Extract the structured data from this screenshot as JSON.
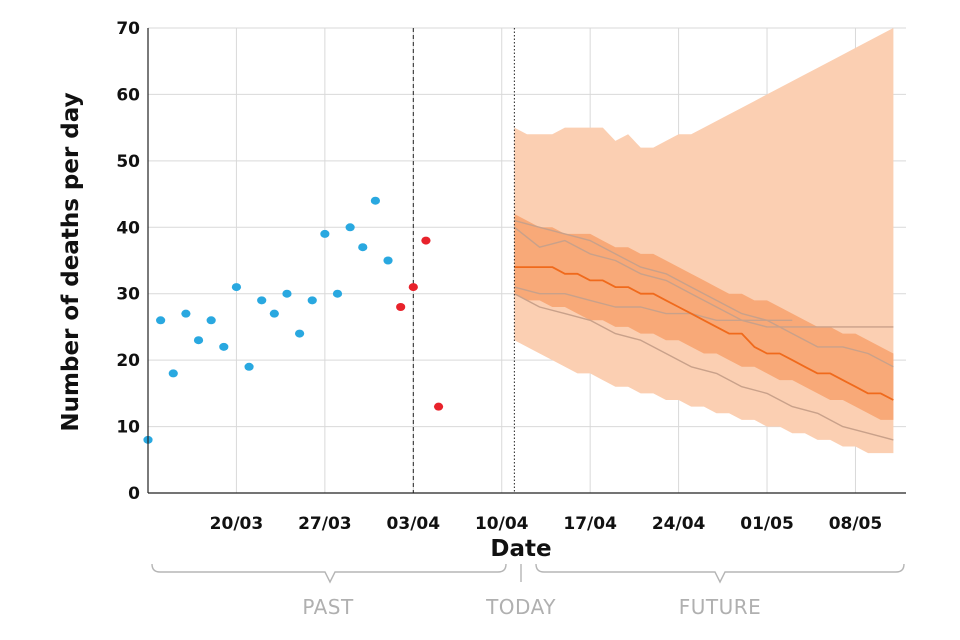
{
  "chart_data": {
    "type": "scatter",
    "title": "",
    "xlabel": "Date",
    "ylabel": "Number of deaths per day",
    "ylim": [
      0,
      70
    ],
    "xlim": [
      "2020-03-13",
      "2020-05-12"
    ],
    "grid": true,
    "y_ticks": [
      0,
      10,
      20,
      30,
      40,
      50,
      60,
      70
    ],
    "x_ticks": [
      {
        "date": "2020-03-20",
        "label": "20/03"
      },
      {
        "date": "2020-03-27",
        "label": "27/03"
      },
      {
        "date": "2020-04-03",
        "label": "03/04"
      },
      {
        "date": "2020-04-10",
        "label": "10/04"
      },
      {
        "date": "2020-04-17",
        "label": "17/04"
      },
      {
        "date": "2020-04-24",
        "label": "24/04"
      },
      {
        "date": "2020-05-01",
        "label": "01/05"
      },
      {
        "date": "2020-05-08",
        "label": "08/05"
      }
    ],
    "markers": [
      {
        "date": "2020-04-03",
        "style": "dashed"
      },
      {
        "date": "2020-04-11",
        "style": "dotted"
      }
    ],
    "period_labels": {
      "past": "PAST",
      "today": "TODAY",
      "future": "FUTURE"
    },
    "colors": {
      "observed": "#29a8e0",
      "recent": "#e8222b",
      "median": "#f06a1c",
      "inner_band": "#f8a978",
      "outer_band": "#fbcfb2",
      "scenario_line": "#c9a18a",
      "grid": "#d9d9d9"
    },
    "series": [
      {
        "type": "scatter",
        "color": "#29a8e0",
        "points": [
          {
            "x": "2020-03-13",
            "y": 8
          },
          {
            "x": "2020-03-14",
            "y": 26
          },
          {
            "x": "2020-03-15",
            "y": 18
          },
          {
            "x": "2020-03-16",
            "y": 27
          },
          {
            "x": "2020-03-17",
            "y": 23
          },
          {
            "x": "2020-03-18",
            "y": 26
          },
          {
            "x": "2020-03-19",
            "y": 22
          },
          {
            "x": "2020-03-20",
            "y": 31
          },
          {
            "x": "2020-03-21",
            "y": 19
          },
          {
            "x": "2020-03-22",
            "y": 29
          },
          {
            "x": "2020-03-23",
            "y": 27
          },
          {
            "x": "2020-03-24",
            "y": 30
          },
          {
            "x": "2020-03-25",
            "y": 24
          },
          {
            "x": "2020-03-26",
            "y": 29
          },
          {
            "x": "2020-03-27",
            "y": 39
          },
          {
            "x": "2020-03-28",
            "y": 30
          },
          {
            "x": "2020-03-29",
            "y": 40
          },
          {
            "x": "2020-03-30",
            "y": 37
          },
          {
            "x": "2020-03-31",
            "y": 44
          },
          {
            "x": "2020-04-01",
            "y": 35
          }
        ]
      },
      {
        "type": "scatter",
        "color": "#e8222b",
        "points": [
          {
            "x": "2020-04-02",
            "y": 28
          },
          {
            "x": "2020-04-03",
            "y": 31
          },
          {
            "x": "2020-04-04",
            "y": 38
          },
          {
            "x": "2020-04-05",
            "y": 13
          }
        ]
      },
      {
        "type": "band",
        "color": "#fbcfb2",
        "points": [
          {
            "x": "2020-04-11",
            "low": 23,
            "high": 55
          },
          {
            "x": "2020-04-12",
            "low": 22,
            "high": 54
          },
          {
            "x": "2020-04-13",
            "low": 21,
            "high": 54
          },
          {
            "x": "2020-04-14",
            "low": 20,
            "high": 54
          },
          {
            "x": "2020-04-15",
            "low": 19,
            "high": 55
          },
          {
            "x": "2020-04-16",
            "low": 18,
            "high": 55
          },
          {
            "x": "2020-04-17",
            "low": 18,
            "high": 55
          },
          {
            "x": "2020-04-18",
            "low": 17,
            "high": 55
          },
          {
            "x": "2020-04-19",
            "low": 16,
            "high": 53
          },
          {
            "x": "2020-04-20",
            "low": 16,
            "high": 54
          },
          {
            "x": "2020-04-21",
            "low": 15,
            "high": 52
          },
          {
            "x": "2020-04-22",
            "low": 15,
            "high": 52
          },
          {
            "x": "2020-04-23",
            "low": 14,
            "high": 53
          },
          {
            "x": "2020-04-24",
            "low": 14,
            "high": 54
          },
          {
            "x": "2020-04-25",
            "low": 13,
            "high": 54
          },
          {
            "x": "2020-04-26",
            "low": 13,
            "high": 55
          },
          {
            "x": "2020-04-27",
            "low": 12,
            "high": 56
          },
          {
            "x": "2020-04-28",
            "low": 12,
            "high": 57
          },
          {
            "x": "2020-04-29",
            "low": 11,
            "high": 58
          },
          {
            "x": "2020-04-30",
            "low": 11,
            "high": 59
          },
          {
            "x": "2020-05-01",
            "low": 10,
            "high": 60
          },
          {
            "x": "2020-05-02",
            "low": 10,
            "high": 61
          },
          {
            "x": "2020-05-03",
            "low": 9,
            "high": 62
          },
          {
            "x": "2020-05-04",
            "low": 9,
            "high": 63
          },
          {
            "x": "2020-05-05",
            "low": 8,
            "high": 64
          },
          {
            "x": "2020-05-06",
            "low": 8,
            "high": 65
          },
          {
            "x": "2020-05-07",
            "low": 7,
            "high": 66
          },
          {
            "x": "2020-05-08",
            "low": 7,
            "high": 67
          },
          {
            "x": "2020-05-09",
            "low": 6,
            "high": 68
          },
          {
            "x": "2020-05-10",
            "low": 6,
            "high": 69
          },
          {
            "x": "2020-05-11",
            "low": 6,
            "high": 70
          }
        ]
      },
      {
        "type": "band",
        "color": "#f8a978",
        "points": [
          {
            "x": "2020-04-11",
            "low": 30,
            "high": 42
          },
          {
            "x": "2020-04-12",
            "low": 29,
            "high": 41
          },
          {
            "x": "2020-04-13",
            "low": 29,
            "high": 40
          },
          {
            "x": "2020-04-14",
            "low": 28,
            "high": 40
          },
          {
            "x": "2020-04-15",
            "low": 28,
            "high": 39
          },
          {
            "x": "2020-04-16",
            "low": 27,
            "high": 39
          },
          {
            "x": "2020-04-17",
            "low": 26,
            "high": 39
          },
          {
            "x": "2020-04-18",
            "low": 26,
            "high": 38
          },
          {
            "x": "2020-04-19",
            "low": 25,
            "high": 37
          },
          {
            "x": "2020-04-20",
            "low": 25,
            "high": 37
          },
          {
            "x": "2020-04-21",
            "low": 24,
            "high": 36
          },
          {
            "x": "2020-04-22",
            "low": 24,
            "high": 36
          },
          {
            "x": "2020-04-23",
            "low": 23,
            "high": 35
          },
          {
            "x": "2020-04-24",
            "low": 23,
            "high": 34
          },
          {
            "x": "2020-04-25",
            "low": 22,
            "high": 33
          },
          {
            "x": "2020-04-26",
            "low": 21,
            "high": 32
          },
          {
            "x": "2020-04-27",
            "low": 21,
            "high": 31
          },
          {
            "x": "2020-04-28",
            "low": 20,
            "high": 30
          },
          {
            "x": "2020-04-29",
            "low": 19,
            "high": 30
          },
          {
            "x": "2020-04-30",
            "low": 19,
            "high": 29
          },
          {
            "x": "2020-05-01",
            "low": 18,
            "high": 29
          },
          {
            "x": "2020-05-02",
            "low": 17,
            "high": 28
          },
          {
            "x": "2020-05-03",
            "low": 17,
            "high": 27
          },
          {
            "x": "2020-05-04",
            "low": 16,
            "high": 26
          },
          {
            "x": "2020-05-05",
            "low": 15,
            "high": 25
          },
          {
            "x": "2020-05-06",
            "low": 14,
            "high": 25
          },
          {
            "x": "2020-05-07",
            "low": 14,
            "high": 24
          },
          {
            "x": "2020-05-08",
            "low": 13,
            "high": 24
          },
          {
            "x": "2020-05-09",
            "low": 12,
            "high": 23
          },
          {
            "x": "2020-05-10",
            "low": 11,
            "high": 22
          },
          {
            "x": "2020-05-11",
            "low": 11,
            "high": 21
          }
        ]
      },
      {
        "type": "line",
        "color": "#c9a18a",
        "points": [
          {
            "x": "2020-04-11",
            "y": 40
          },
          {
            "x": "2020-04-13",
            "y": 37
          },
          {
            "x": "2020-04-15",
            "y": 38
          },
          {
            "x": "2020-04-17",
            "y": 36
          },
          {
            "x": "2020-04-19",
            "y": 35
          },
          {
            "x": "2020-04-21",
            "y": 33
          },
          {
            "x": "2020-04-23",
            "y": 32
          },
          {
            "x": "2020-04-25",
            "y": 30
          },
          {
            "x": "2020-04-27",
            "y": 28
          },
          {
            "x": "2020-04-29",
            "y": 26
          },
          {
            "x": "2020-05-01",
            "y": 25
          },
          {
            "x": "2020-05-03",
            "y": 25
          },
          {
            "x": "2020-05-05",
            "y": 25
          },
          {
            "x": "2020-05-07",
            "y": 25
          },
          {
            "x": "2020-05-09",
            "y": 25
          },
          {
            "x": "2020-05-11",
            "y": 25
          }
        ]
      },
      {
        "type": "line",
        "color": "#c9a18a",
        "points": [
          {
            "x": "2020-04-11",
            "y": 41
          },
          {
            "x": "2020-04-13",
            "y": 40
          },
          {
            "x": "2020-04-15",
            "y": 39
          },
          {
            "x": "2020-04-17",
            "y": 38
          },
          {
            "x": "2020-04-19",
            "y": 36
          },
          {
            "x": "2020-04-21",
            "y": 34
          },
          {
            "x": "2020-04-23",
            "y": 33
          },
          {
            "x": "2020-04-25",
            "y": 31
          },
          {
            "x": "2020-04-27",
            "y": 29
          },
          {
            "x": "2020-04-29",
            "y": 27
          },
          {
            "x": "2020-05-01",
            "y": 26
          },
          {
            "x": "2020-05-03",
            "y": 24
          },
          {
            "x": "2020-05-05",
            "y": 22
          },
          {
            "x": "2020-05-07",
            "y": 22
          },
          {
            "x": "2020-05-09",
            "y": 21
          },
          {
            "x": "2020-05-11",
            "y": 19
          }
        ]
      },
      {
        "type": "line",
        "color": "#c9a18a",
        "points": [
          {
            "x": "2020-04-11",
            "y": 31
          },
          {
            "x": "2020-04-13",
            "y": 30
          },
          {
            "x": "2020-04-15",
            "y": 30
          },
          {
            "x": "2020-04-17",
            "y": 29
          },
          {
            "x": "2020-04-19",
            "y": 28
          },
          {
            "x": "2020-04-21",
            "y": 28
          },
          {
            "x": "2020-04-23",
            "y": 27
          },
          {
            "x": "2020-04-25",
            "y": 27
          },
          {
            "x": "2020-04-27",
            "y": 26
          },
          {
            "x": "2020-04-29",
            "y": 26
          },
          {
            "x": "2020-05-01",
            "y": 26
          },
          {
            "x": "2020-05-03",
            "y": 26
          }
        ]
      },
      {
        "type": "line",
        "color": "#c9a18a",
        "points": [
          {
            "x": "2020-04-11",
            "y": 30
          },
          {
            "x": "2020-04-13",
            "y": 28
          },
          {
            "x": "2020-04-15",
            "y": 27
          },
          {
            "x": "2020-04-17",
            "y": 26
          },
          {
            "x": "2020-04-19",
            "y": 24
          },
          {
            "x": "2020-04-21",
            "y": 23
          },
          {
            "x": "2020-04-23",
            "y": 21
          },
          {
            "x": "2020-04-25",
            "y": 19
          },
          {
            "x": "2020-04-27",
            "y": 18
          },
          {
            "x": "2020-04-29",
            "y": 16
          },
          {
            "x": "2020-05-01",
            "y": 15
          },
          {
            "x": "2020-05-03",
            "y": 13
          },
          {
            "x": "2020-05-05",
            "y": 12
          },
          {
            "x": "2020-05-07",
            "y": 10
          },
          {
            "x": "2020-05-09",
            "y": 9
          },
          {
            "x": "2020-05-11",
            "y": 8
          }
        ]
      },
      {
        "type": "line",
        "color": "#f06a1c",
        "points": [
          {
            "x": "2020-04-11",
            "y": 34
          },
          {
            "x": "2020-04-12",
            "y": 34
          },
          {
            "x": "2020-04-13",
            "y": 34
          },
          {
            "x": "2020-04-14",
            "y": 34
          },
          {
            "x": "2020-04-15",
            "y": 33
          },
          {
            "x": "2020-04-16",
            "y": 33
          },
          {
            "x": "2020-04-17",
            "y": 32
          },
          {
            "x": "2020-04-18",
            "y": 32
          },
          {
            "x": "2020-04-19",
            "y": 31
          },
          {
            "x": "2020-04-20",
            "y": 31
          },
          {
            "x": "2020-04-21",
            "y": 30
          },
          {
            "x": "2020-04-22",
            "y": 30
          },
          {
            "x": "2020-04-23",
            "y": 29
          },
          {
            "x": "2020-04-24",
            "y": 28
          },
          {
            "x": "2020-04-25",
            "y": 27
          },
          {
            "x": "2020-04-26",
            "y": 26
          },
          {
            "x": "2020-04-27",
            "y": 25
          },
          {
            "x": "2020-04-28",
            "y": 24
          },
          {
            "x": "2020-04-29",
            "y": 24
          },
          {
            "x": "2020-04-30",
            "y": 22
          },
          {
            "x": "2020-05-01",
            "y": 21
          },
          {
            "x": "2020-05-02",
            "y": 21
          },
          {
            "x": "2020-05-03",
            "y": 20
          },
          {
            "x": "2020-05-04",
            "y": 19
          },
          {
            "x": "2020-05-05",
            "y": 18
          },
          {
            "x": "2020-05-06",
            "y": 18
          },
          {
            "x": "2020-05-07",
            "y": 17
          },
          {
            "x": "2020-05-08",
            "y": 16
          },
          {
            "x": "2020-05-09",
            "y": 15
          },
          {
            "x": "2020-05-10",
            "y": 15
          },
          {
            "x": "2020-05-11",
            "y": 14
          }
        ]
      }
    ]
  }
}
